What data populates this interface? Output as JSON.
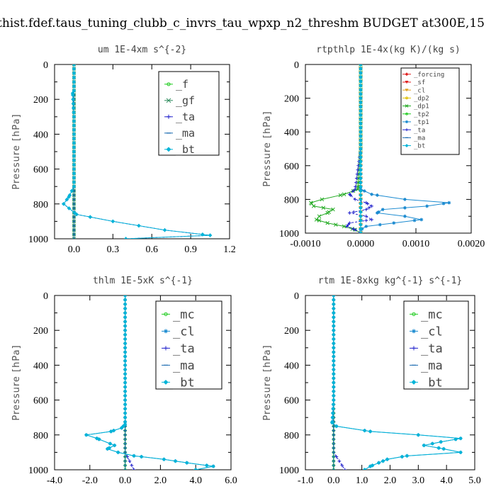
{
  "figure_title": "thist.fdef.taus_tuning_clubb_c_invrs_tau_wpxp_n2_threshm  BUDGET at300E,15",
  "chart_data": [
    {
      "type": "line",
      "title": "um   1E-4xm s^{-2}",
      "ylabel": "Pressure [hPa]",
      "xlim": [
        -0.15,
        1.2
      ],
      "ylim": [
        1000,
        0
      ],
      "xticks": [
        "0.0",
        "0.3",
        "0.6",
        "0.9",
        "1.2"
      ],
      "xtick_values": [
        0.0,
        0.3,
        0.6,
        0.9,
        1.2
      ],
      "yticks": [
        "0",
        "200",
        "400",
        "600",
        "800",
        "1000"
      ],
      "legend_position": "top-right",
      "series": [
        {
          "name": "_f",
          "color": "#22cc22",
          "marker": "circle",
          "pressure": [
            0,
            100,
            200,
            300,
            400,
            500,
            600,
            700,
            800,
            900,
            1000
          ],
          "values": [
            0,
            0,
            0,
            0,
            0,
            0,
            0,
            0,
            0,
            0,
            0
          ]
        },
        {
          "name": "_gf",
          "color": "#2a8a5a",
          "marker": "x",
          "pressure": [
            0,
            100,
            200,
            300,
            400,
            500,
            600,
            700,
            800,
            900,
            1000
          ],
          "values": [
            0,
            0,
            0,
            0,
            0,
            0,
            0,
            0,
            0,
            0,
            0
          ]
        },
        {
          "name": "_ta",
          "color": "#2222cc",
          "marker": "plus",
          "pressure": [
            0,
            150,
            165,
            300,
            700,
            760,
            800,
            860,
            900,
            950,
            980,
            1000
          ],
          "values": [
            0,
            0,
            -0.01,
            0,
            0,
            -0.04,
            -0.08,
            0.02,
            0.3,
            0.7,
            1.05,
            0.4
          ]
        },
        {
          "name": "_ma",
          "color": "#1a6ab0",
          "marker": "dash",
          "pressure": [
            0,
            200,
            400,
            600,
            800,
            1000
          ],
          "values": [
            0,
            0,
            0,
            0,
            0,
            0
          ]
        },
        {
          "name": "_bt",
          "color": "#00b4d8",
          "marker": "diamond",
          "pressure": [
            0,
            150,
            165,
            300,
            700,
            760,
            800,
            860,
            900,
            950,
            980,
            1000
          ],
          "values": [
            0,
            0,
            -0.01,
            0,
            0,
            -0.04,
            -0.08,
            0.02,
            0.3,
            0.7,
            1.05,
            0.4
          ]
        }
      ]
    },
    {
      "type": "line",
      "title": "rtpthlp   1E-4x(kg K)/(kg s)",
      "ylabel": "Pressure [hPa]",
      "xlim": [
        -0.001,
        0.002
      ],
      "ylim": [
        1000,
        0
      ],
      "xticks": [
        "-0.0010",
        "0.0000",
        "0.0010",
        "0.0020"
      ],
      "xtick_values": [
        -0.001,
        0.0,
        0.001,
        0.002
      ],
      "yticks": [
        "0",
        "200",
        "400",
        "600",
        "800",
        "1000"
      ],
      "legend_position": "top-right",
      "series": [
        {
          "name": "_forcing",
          "color": "#e02020",
          "marker": "diamond",
          "pressure": [
            0,
            1000
          ],
          "values": [
            0,
            0
          ]
        },
        {
          "name": "_sf",
          "color": "#e02020",
          "marker": "triangle",
          "pressure": [
            0,
            1000
          ],
          "values": [
            0,
            0
          ]
        },
        {
          "name": "_cl",
          "color": "#e0a020",
          "marker": "triangle",
          "pressure": [
            0,
            1000
          ],
          "values": [
            0,
            0
          ]
        },
        {
          "name": "_dp2",
          "color": "#e0c000",
          "marker": "circle",
          "pressure": [
            0,
            1000
          ],
          "values": [
            0,
            0
          ]
        },
        {
          "name": "_dp1",
          "color": "#22aa22",
          "marker": "x",
          "pressure": [
            0,
            500,
            740,
            770,
            800,
            820,
            840,
            860,
            880,
            900,
            920,
            940,
            960,
            980,
            1000
          ],
          "values": [
            0,
            0,
            -5e-05,
            -0.0003,
            -0.0007,
            -0.0009,
            -0.00085,
            -0.0005,
            -0.0006,
            -0.00075,
            -0.0008,
            -0.0006,
            -0.0003,
            -0.0001,
            0
          ]
        },
        {
          "name": "_tp2",
          "color": "#22cc22",
          "marker": "circle",
          "pressure": [
            0,
            1000
          ],
          "values": [
            0,
            0
          ]
        },
        {
          "name": "_tp1",
          "color": "#1a8ad0",
          "marker": "star",
          "pressure": [
            0,
            500,
            740,
            770,
            800,
            820,
            840,
            860,
            880,
            900,
            920,
            940,
            960,
            980,
            1000
          ],
          "values": [
            0,
            0,
            0,
            0.0002,
            0.0008,
            0.0016,
            0.0012,
            0.0004,
            0.0003,
            0.0008,
            0.0011,
            0.0006,
            0.0001,
            0,
            0
          ]
        },
        {
          "name": "_ta",
          "color": "#2222cc",
          "marker": "plus",
          "pressure": [
            0,
            500,
            740,
            770,
            800,
            820,
            840,
            860,
            880,
            900,
            920,
            940,
            960,
            980,
            1000
          ],
          "values": [
            0,
            0,
            -0.0001,
            -0.0002,
            -0.0001,
            0.0001,
            0.0002,
            0.0001,
            -0.0002,
            0.0001,
            0.0002,
            -0.0002,
            -0.00025,
            -0.0001,
            0
          ]
        },
        {
          "name": "_ma",
          "color": "#1a6ab0",
          "marker": "dash",
          "pressure": [
            0,
            1000
          ],
          "values": [
            0,
            0
          ]
        },
        {
          "name": "_bt",
          "color": "#00b4d8",
          "marker": "diamond",
          "pressure": [
            0,
            1000
          ],
          "values": [
            0,
            0
          ]
        }
      ]
    },
    {
      "type": "line",
      "title": "thlm   1E-5xK s^{-1}",
      "ylabel": "Pressure [hPa]",
      "xlim": [
        -4.0,
        6.0
      ],
      "ylim": [
        1000,
        0
      ],
      "xticks": [
        "-4.0",
        "-2.0",
        "0.0",
        "2.0",
        "4.0",
        "6.0"
      ],
      "xtick_values": [
        -4.0,
        -2.0,
        0.0,
        2.0,
        4.0,
        6.0
      ],
      "yticks": [
        "0",
        "200",
        "400",
        "600",
        "800",
        "1000"
      ],
      "legend_position": "top-right",
      "series": [
        {
          "name": "_mc",
          "color": "#22cc22",
          "marker": "circle",
          "pressure": [
            0,
            100,
            200,
            300,
            400,
            500,
            600,
            700,
            800,
            900,
            1000
          ],
          "values": [
            0,
            0,
            0,
            0,
            0,
            0,
            0,
            0,
            0,
            0,
            0
          ]
        },
        {
          "name": "_cl",
          "color": "#1a8ad0",
          "marker": "star",
          "pressure": [
            0,
            300,
            600,
            740,
            760,
            780,
            800,
            820,
            860,
            880,
            900,
            920,
            940,
            960,
            980,
            1000
          ],
          "values": [
            0,
            0,
            0,
            0,
            -0.2,
            -0.8,
            -2.2,
            -1.6,
            -0.6,
            -1.0,
            -0.4,
            0.5,
            2.2,
            3.5,
            5.0,
            4.0
          ]
        },
        {
          "name": "_ta",
          "color": "#2222cc",
          "marker": "plus",
          "pressure": [
            0,
            800,
            900,
            1000
          ],
          "values": [
            0,
            0,
            0,
            0.5
          ]
        },
        {
          "name": "_ma",
          "color": "#1a6ab0",
          "marker": "dash",
          "pressure": [
            0,
            1000
          ],
          "values": [
            0,
            0
          ]
        },
        {
          "name": "_bt",
          "color": "#00b4d8",
          "marker": "diamond",
          "pressure": [
            0,
            300,
            600,
            740,
            760,
            780,
            800,
            820,
            860,
            880,
            900,
            920,
            940,
            960,
            980,
            1000
          ],
          "values": [
            0,
            0,
            0,
            0,
            -0.2,
            -0.8,
            -2.2,
            -1.6,
            -0.6,
            -1.0,
            -0.4,
            0.5,
            2.2,
            3.5,
            5.0,
            4.0
          ]
        }
      ]
    },
    {
      "type": "line",
      "title": "rtm   1E-8xkg kg^{-1} s^{-1}",
      "ylabel": "Pressure [hPa]",
      "xlim": [
        -1.0,
        5.0
      ],
      "ylim": [
        1000,
        0
      ],
      "xticks": [
        "-1.0",
        "0.0",
        "1.0",
        "2.0",
        "3.0",
        "4.0",
        "5.0"
      ],
      "xtick_values": [
        -1.0,
        0.0,
        1.0,
        2.0,
        3.0,
        4.0,
        5.0
      ],
      "yticks": [
        "0",
        "200",
        "400",
        "600",
        "800",
        "1000"
      ],
      "legend_position": "top-right",
      "series": [
        {
          "name": "_mc",
          "color": "#22cc22",
          "marker": "circle",
          "pressure": [
            0,
            100,
            200,
            300,
            400,
            500,
            600,
            700,
            800,
            900,
            1000
          ],
          "values": [
            0,
            0,
            0,
            0,
            0,
            0,
            0,
            0,
            0,
            0,
            0
          ]
        },
        {
          "name": "_cl",
          "color": "#1a8ad0",
          "marker": "star",
          "pressure": [
            0,
            300,
            600,
            730,
            750,
            780,
            800,
            820,
            840,
            860,
            880,
            900,
            920,
            940,
            960,
            980,
            1000
          ],
          "values": [
            0,
            0,
            0,
            -0.05,
            0.1,
            1.3,
            3.0,
            4.5,
            3.8,
            3.2,
            3.9,
            4.5,
            2.6,
            1.9,
            1.6,
            1.3,
            1.1
          ]
        },
        {
          "name": "_ta",
          "color": "#2222cc",
          "marker": "plus",
          "pressure": [
            0,
            900,
            1000
          ],
          "values": [
            0,
            0,
            0.4
          ]
        },
        {
          "name": "_ma",
          "color": "#1a6ab0",
          "marker": "dash",
          "pressure": [
            0,
            1000
          ],
          "values": [
            0,
            0
          ]
        },
        {
          "name": "_bt",
          "color": "#00b4d8",
          "marker": "diamond",
          "pressure": [
            0,
            300,
            600,
            730,
            750,
            780,
            800,
            820,
            840,
            860,
            880,
            900,
            920,
            940,
            960,
            980,
            1000
          ],
          "values": [
            0,
            0,
            0,
            -0.05,
            0.1,
            1.3,
            3.0,
            4.5,
            3.8,
            3.2,
            3.9,
            4.5,
            2.6,
            1.9,
            1.6,
            1.3,
            1.1
          ]
        }
      ]
    }
  ]
}
